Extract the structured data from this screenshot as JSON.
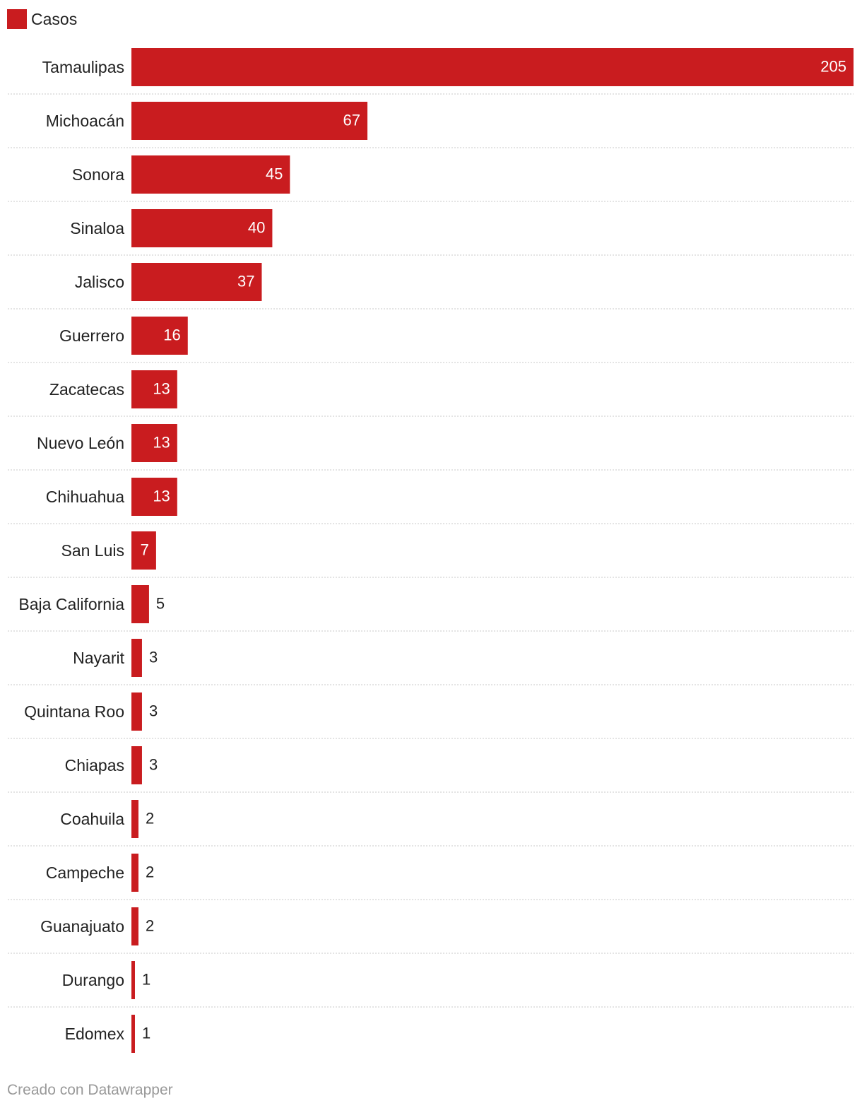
{
  "legend": {
    "label": "Casos",
    "color": "#c91c1f"
  },
  "footer": {
    "credit": "Creado con Datawrapper"
  },
  "chart_data": {
    "type": "bar",
    "orientation": "horizontal",
    "title": "",
    "xlabel": "",
    "ylabel": "",
    "xlim": [
      0,
      205
    ],
    "grid": false,
    "legend_position": "top-left",
    "bar_color": "#c91c1f",
    "series": [
      {
        "name": "Casos"
      }
    ],
    "categories": [
      "Tamaulipas",
      "Michoacán",
      "Sonora",
      "Sinaloa",
      "Jalisco",
      "Guerrero",
      "Zacatecas",
      "Nuevo León",
      "Chihuahua",
      "San Luis",
      "Baja California",
      "Nayarit",
      "Quintana Roo",
      "Chiapas",
      "Coahuila",
      "Campeche",
      "Guanajuato",
      "Durango",
      "Edomex"
    ],
    "values": [
      205,
      67,
      45,
      40,
      37,
      16,
      13,
      13,
      13,
      7,
      5,
      3,
      3,
      3,
      2,
      2,
      2,
      1,
      1
    ]
  }
}
